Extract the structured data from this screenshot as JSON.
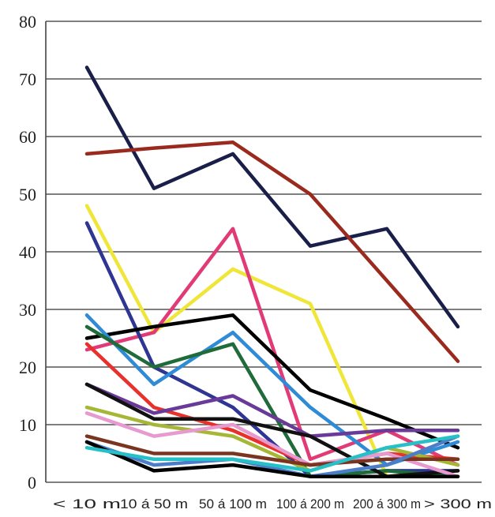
{
  "chart_data": {
    "type": "line",
    "title": "",
    "xlabel": "",
    "ylabel": "",
    "categories": [
      "< 10 m",
      "10 á 50 m",
      "50 á 100 m",
      "100 á 200 m",
      "200 á 300 m",
      "> 300 m"
    ],
    "ylim": [
      0,
      80
    ],
    "yticks": [
      0,
      10,
      20,
      30,
      40,
      50,
      60,
      70,
      80
    ],
    "grid": true,
    "legend": "none",
    "series": [
      {
        "color": "#1a1f4a",
        "values": [
          72,
          51,
          57,
          41,
          44,
          27
        ]
      },
      {
        "color": "#9b2a1e",
        "values": [
          57,
          58,
          59,
          50,
          35,
          21
        ]
      },
      {
        "color": "#f0e63a",
        "values": [
          48,
          26,
          37,
          31,
          1,
          2
        ]
      },
      {
        "color": "#e23a77",
        "values": [
          23,
          26,
          44,
          4,
          9,
          3
        ]
      },
      {
        "color": "#2e3592",
        "values": [
          45,
          20,
          13,
          1,
          2,
          2
        ]
      },
      {
        "color": "#000000",
        "values": [
          25,
          27,
          29,
          16,
          11,
          6
        ]
      },
      {
        "color": "#2f8bd6",
        "values": [
          29,
          17,
          26,
          13,
          3,
          7
        ]
      },
      {
        "color": "#1f6b3a",
        "values": [
          27,
          20,
          24,
          1,
          2,
          1
        ]
      },
      {
        "color": "#e8312a",
        "values": [
          24,
          13,
          9,
          3,
          5,
          4
        ]
      },
      {
        "color": "#6a3a98",
        "values": [
          17,
          12,
          15,
          8,
          9,
          9
        ]
      },
      {
        "color": "#111111",
        "values": [
          17,
          11,
          11,
          8,
          1,
          2
        ]
      },
      {
        "color": "#a6b736",
        "values": [
          13,
          10,
          8,
          2,
          6,
          3
        ]
      },
      {
        "color": "#e79ad0",
        "values": [
          12,
          8,
          10,
          3,
          5,
          1
        ]
      },
      {
        "color": "#7a3520",
        "values": [
          8,
          5,
          5,
          3,
          4,
          4
        ]
      },
      {
        "color": "#4a7ec8",
        "values": [
          7,
          3,
          4,
          1,
          3,
          8
        ]
      },
      {
        "color": "#000000",
        "values": [
          7,
          2,
          3,
          1,
          1,
          1
        ]
      },
      {
        "color": "#26c0c7",
        "values": [
          6,
          4,
          4,
          2,
          6,
          8
        ]
      }
    ]
  }
}
